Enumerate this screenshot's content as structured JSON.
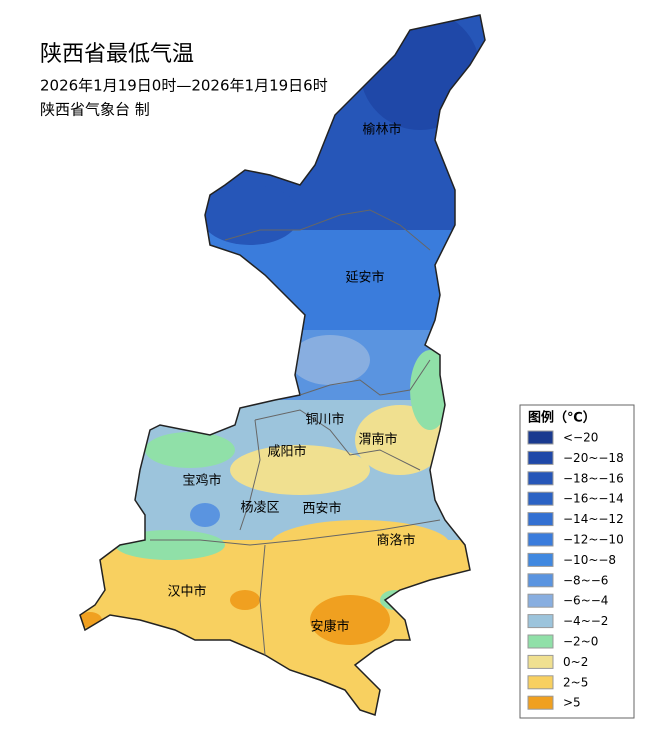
{
  "title": "陕西省最低气温",
  "subtitle": "2026年1月19日0时—2026年1月19日6时",
  "producer": "陕西省气象台 制",
  "cities": [
    "榆林市",
    "延安市",
    "铜川市",
    "渭南市",
    "咸阳市",
    "宝鸡市",
    "杨凌区",
    "西安市",
    "商洛市",
    "汉中市",
    "安康市"
  ],
  "legend": {
    "title": "图例（℃）",
    "items": [
      {
        "label": "<−20",
        "color": "#1a3a8f"
      },
      {
        "label": "−20~−18",
        "color": "#1f48a8"
      },
      {
        "label": "−18~−16",
        "color": "#2656b8"
      },
      {
        "label": "−16~−14",
        "color": "#2b62c4"
      },
      {
        "label": "−14~−12",
        "color": "#3370d2"
      },
      {
        "label": "−12~−10",
        "color": "#3a7cdc"
      },
      {
        "label": "−10~−8",
        "color": "#4088e0"
      },
      {
        "label": "−8~−6",
        "color": "#5a94e0"
      },
      {
        "label": "−6~−4",
        "color": "#88aee0"
      },
      {
        "label": "−4~−2",
        "color": "#9cc4dc"
      },
      {
        "label": "−2~0",
        "color": "#90e0a8"
      },
      {
        "label": "0~2",
        "color": "#f0e090"
      },
      {
        "label": "2~5",
        "color": "#f8d060"
      },
      {
        "label": ">5",
        "color": "#f0a020"
      }
    ]
  }
}
